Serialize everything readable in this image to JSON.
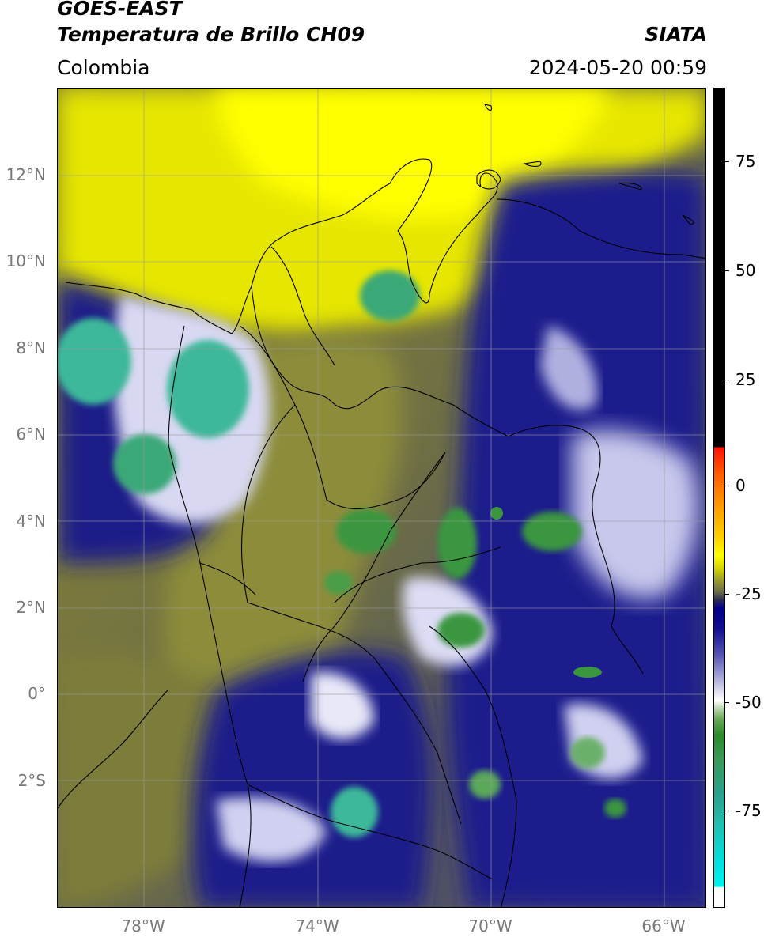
{
  "header": {
    "satellite": "GOES-EAST",
    "product": "Temperatura de Brillo CH09",
    "region": "Colombia",
    "organization": "SIATA",
    "datetime": "2024-05-20 00:59"
  },
  "map": {
    "lat_labels": [
      "12°N",
      "10°N",
      "8°N",
      "6°N",
      "4°N",
      "2°N",
      "0°",
      "2°S"
    ],
    "lon_labels": [
      "78°W",
      "74°W",
      "70°W",
      "66°W"
    ],
    "colors": {
      "cold_cloud_green": "#2e8b3e",
      "cold_cloud_cyan": "#3cb89a",
      "mid_blue": "#1a1a8c",
      "warm_yellow": "#f0f000",
      "olive": "#8a8a3a"
    }
  },
  "colorbar": {
    "tick_labels": [
      "75",
      "50",
      "25",
      "0",
      "-25",
      "-50",
      "-75"
    ]
  }
}
